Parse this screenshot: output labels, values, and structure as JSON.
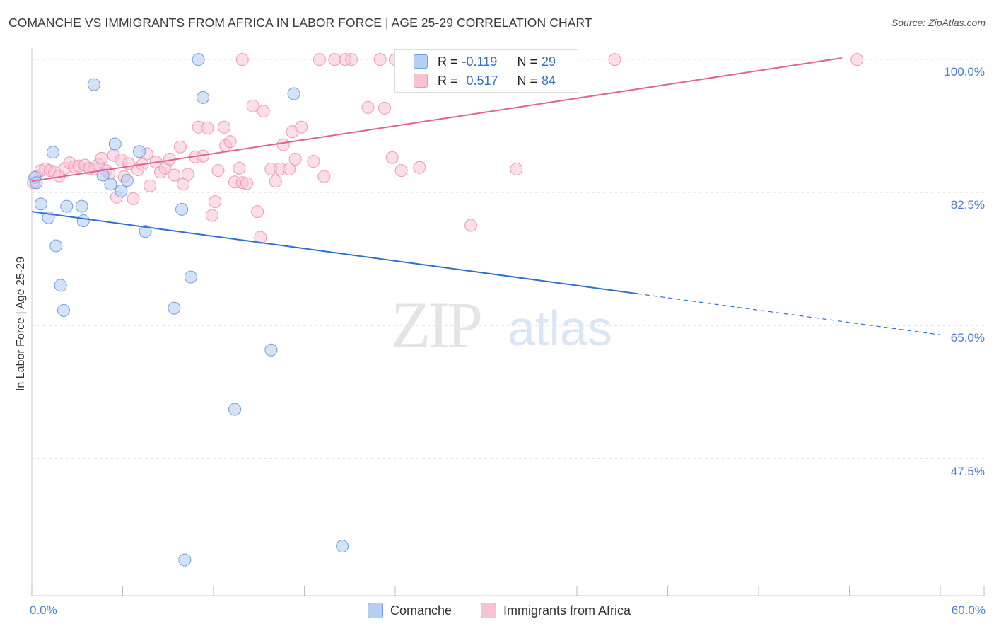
{
  "title": "COMANCHE VS IMMIGRANTS FROM AFRICA IN LABOR FORCE | AGE 25-29 CORRELATION CHART",
  "source": "Source: ZipAtlas.com",
  "watermark": {
    "zip": "ZIP",
    "atlas": "atlas"
  },
  "colors": {
    "comanche_fill": "#b5cff2",
    "comanche_stroke": "#6fa0e0",
    "comanche_line": "#2f6fd0",
    "africa_fill": "#f7c3d3",
    "africa_stroke": "#ee9ab5",
    "africa_line": "#e0628f",
    "tick_color": "#4a7fc9"
  },
  "legend": {
    "row1": {
      "r_label": "R = ",
      "r_value": "-0.119",
      "n_label": "N = ",
      "n_value": "29"
    },
    "row2": {
      "r_label": "R = ",
      "r_value": "0.517",
      "n_label": "N = ",
      "n_value": "84"
    }
  },
  "bottom_legend": {
    "comanche": "Comanche",
    "africa": "Immigrants from Africa"
  },
  "chart_data": {
    "type": "scatter",
    "title": "COMANCHE VS IMMIGRANTS FROM AFRICA IN LABOR FORCE | AGE 25-29 CORRELATION CHART",
    "xlabel": "",
    "ylabel": "In Labor Force | Age 25-29",
    "xlim": [
      0,
      60
    ],
    "ylim": [
      29.5,
      101.5
    ],
    "x_tick_labels": {
      "min": "0.0%",
      "max": "60.0%"
    },
    "y_ticks": [
      {
        "value": 100.0,
        "label": "100.0%"
      },
      {
        "value": 82.5,
        "label": "82.5%"
      },
      {
        "value": 65.0,
        "label": "65.0%"
      },
      {
        "value": 47.5,
        "label": "47.5%"
      }
    ],
    "series": [
      {
        "name": "Comanche",
        "R": -0.119,
        "N": 29,
        "trend": {
          "x0": 0.0,
          "y0": 80.0,
          "x_solid_end": 40.0,
          "x1": 60.0,
          "y1": 63.8
        },
        "points": [
          [
            0.2,
            84.5
          ],
          [
            0.3,
            83.8
          ],
          [
            0.6,
            81.0
          ],
          [
            1.1,
            79.2
          ],
          [
            1.4,
            87.8
          ],
          [
            1.6,
            75.5
          ],
          [
            1.9,
            70.3
          ],
          [
            2.1,
            67.0
          ],
          [
            2.3,
            80.7
          ],
          [
            3.3,
            80.7
          ],
          [
            3.4,
            78.8
          ],
          [
            4.1,
            96.7
          ],
          [
            4.7,
            84.8
          ],
          [
            5.2,
            83.6
          ],
          [
            5.5,
            88.9
          ],
          [
            5.9,
            82.7
          ],
          [
            6.3,
            84.1
          ],
          [
            7.1,
            87.9
          ],
          [
            7.5,
            77.4
          ],
          [
            9.4,
            67.3
          ],
          [
            9.9,
            80.3
          ],
          [
            10.1,
            34.2
          ],
          [
            10.5,
            71.4
          ],
          [
            11.0,
            100.0
          ],
          [
            11.3,
            95.0
          ],
          [
            13.4,
            54.0
          ],
          [
            15.8,
            61.8
          ],
          [
            17.3,
            95.5
          ],
          [
            20.5,
            36.0
          ]
        ]
      },
      {
        "name": "Immigrants from Africa",
        "R": 0.517,
        "N": 84,
        "trend": {
          "x0": 0.0,
          "y0": 84.0,
          "x1": 53.5,
          "y1": 100.2
        },
        "points": [
          [
            0.1,
            83.8
          ],
          [
            0.3,
            84.6
          ],
          [
            0.6,
            85.4
          ],
          [
            0.9,
            85.6
          ],
          [
            1.2,
            85.4
          ],
          [
            1.5,
            85.2
          ],
          [
            1.8,
            84.7
          ],
          [
            2.2,
            85.7
          ],
          [
            2.5,
            86.4
          ],
          [
            2.8,
            85.9
          ],
          [
            3.1,
            86.0
          ],
          [
            3.5,
            86.1
          ],
          [
            3.8,
            85.7
          ],
          [
            4.1,
            85.6
          ],
          [
            4.4,
            86.2
          ],
          [
            4.6,
            87.0
          ],
          [
            4.9,
            85.4
          ],
          [
            5.1,
            85.0
          ],
          [
            5.4,
            87.4
          ],
          [
            5.6,
            81.9
          ],
          [
            5.9,
            86.8
          ],
          [
            6.1,
            84.6
          ],
          [
            6.4,
            86.3
          ],
          [
            6.7,
            81.7
          ],
          [
            7.0,
            85.5
          ],
          [
            7.3,
            86.2
          ],
          [
            7.6,
            87.6
          ],
          [
            7.8,
            83.4
          ],
          [
            8.2,
            86.5
          ],
          [
            8.5,
            85.2
          ],
          [
            8.8,
            85.7
          ],
          [
            9.1,
            86.9
          ],
          [
            9.4,
            84.8
          ],
          [
            9.8,
            88.5
          ],
          [
            10.0,
            83.6
          ],
          [
            10.3,
            84.9
          ],
          [
            10.8,
            87.2
          ],
          [
            11.0,
            91.1
          ],
          [
            11.3,
            87.3
          ],
          [
            11.6,
            91.0
          ],
          [
            11.9,
            79.5
          ],
          [
            12.1,
            81.3
          ],
          [
            12.3,
            85.4
          ],
          [
            12.7,
            91.1
          ],
          [
            12.8,
            88.7
          ],
          [
            13.1,
            89.2
          ],
          [
            13.4,
            83.9
          ],
          [
            13.7,
            85.7
          ],
          [
            13.9,
            83.8
          ],
          [
            14.2,
            83.7
          ],
          [
            14.6,
            93.9
          ],
          [
            14.9,
            80.0
          ],
          [
            15.1,
            76.6
          ],
          [
            15.3,
            93.2
          ],
          [
            15.8,
            85.6
          ],
          [
            16.1,
            84.0
          ],
          [
            16.4,
            85.6
          ],
          [
            16.6,
            88.8
          ],
          [
            17.0,
            85.6
          ],
          [
            17.2,
            90.5
          ],
          [
            17.4,
            86.9
          ],
          [
            17.8,
            91.1
          ],
          [
            18.6,
            86.6
          ],
          [
            19.3,
            84.6
          ],
          [
            20.0,
            100.0
          ],
          [
            21.1,
            100.0
          ],
          [
            22.2,
            93.7
          ],
          [
            23.0,
            100.0
          ],
          [
            23.3,
            93.6
          ],
          [
            23.8,
            87.1
          ],
          [
            24.4,
            85.4
          ],
          [
            25.6,
            85.8
          ],
          [
            29.0,
            78.2
          ],
          [
            32.0,
            85.6
          ],
          [
            35.0,
            100.0
          ],
          [
            38.5,
            100.0
          ],
          [
            13.9,
            100.0
          ],
          [
            19.0,
            100.0
          ],
          [
            20.7,
            100.0
          ],
          [
            24.0,
            100.0
          ],
          [
            25.0,
            100.0
          ],
          [
            25.5,
            100.0
          ],
          [
            27.5,
            100.0
          ],
          [
            54.5,
            100.0
          ]
        ]
      }
    ]
  }
}
